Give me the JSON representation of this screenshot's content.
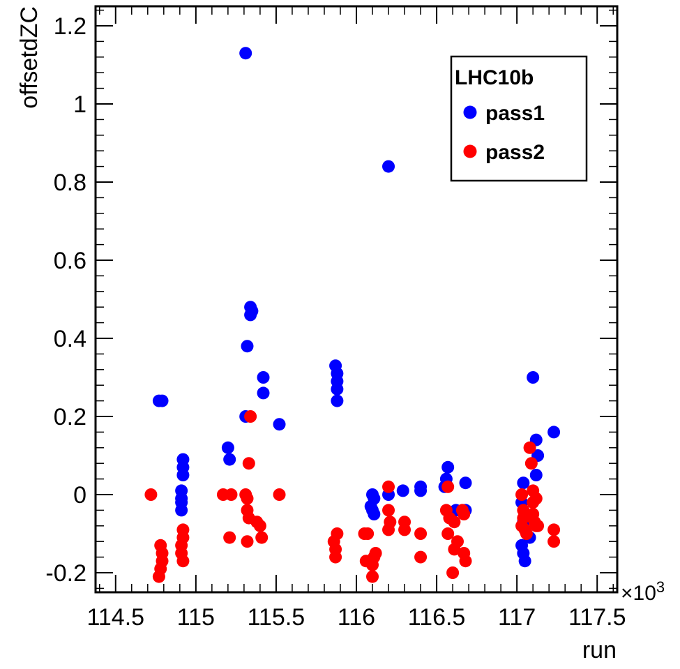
{
  "chart_data": {
    "type": "scatter",
    "title": "",
    "xlabel": "run",
    "ylabel": "offsetdZC",
    "x_multiplier_label": "×10",
    "x_multiplier_exp": "3",
    "xlim": [
      114.375,
      117.625
    ],
    "ylim": [
      -0.25,
      1.25
    ],
    "x_ticks": [
      "114.5",
      "115",
      "115.5",
      "116",
      "116.5",
      "117",
      "117.5"
    ],
    "x_tick_values": [
      114.5,
      115,
      115.5,
      116,
      116.5,
      117,
      117.5
    ],
    "y_ticks": [
      "-0.2",
      "0",
      "0.2",
      "0.4",
      "0.6",
      "0.8",
      "1",
      "1.2"
    ],
    "y_tick_values": [
      -0.2,
      0,
      0.2,
      0.4,
      0.6,
      0.8,
      1.0,
      1.2
    ],
    "grid": false,
    "legend": {
      "title": "LHC10b",
      "placement": "top-right"
    },
    "series": [
      {
        "name": "pass1",
        "color": "#0000ff",
        "points": [
          [
            114.77,
            0.24
          ],
          [
            114.79,
            0.24
          ],
          [
            114.92,
            0.09
          ],
          [
            114.92,
            0.07
          ],
          [
            114.92,
            0.05
          ],
          [
            114.91,
            0.01
          ],
          [
            114.91,
            -0.01
          ],
          [
            114.91,
            -0.02
          ],
          [
            114.91,
            -0.04
          ],
          [
            115.2,
            0.12
          ],
          [
            115.21,
            0.09
          ],
          [
            115.31,
            1.13
          ],
          [
            115.32,
            0.38
          ],
          [
            115.31,
            0.2
          ],
          [
            115.34,
            0.48
          ],
          [
            115.35,
            0.47
          ],
          [
            115.34,
            0.46
          ],
          [
            115.42,
            0.3
          ],
          [
            115.42,
            0.26
          ],
          [
            115.52,
            0.18
          ],
          [
            115.87,
            0.33
          ],
          [
            115.88,
            0.31
          ],
          [
            115.88,
            0.29
          ],
          [
            115.88,
            0.27
          ],
          [
            115.88,
            0.24
          ],
          [
            116.1,
            0.0
          ],
          [
            116.11,
            -0.01
          ],
          [
            116.09,
            -0.03
          ],
          [
            116.1,
            -0.04
          ],
          [
            116.11,
            -0.05
          ],
          [
            116.2,
            0.84
          ],
          [
            116.2,
            0.0
          ],
          [
            116.29,
            0.01
          ],
          [
            116.4,
            0.02
          ],
          [
            116.4,
            0.01
          ],
          [
            116.57,
            0.07
          ],
          [
            116.56,
            0.04
          ],
          [
            116.55,
            0.02
          ],
          [
            116.62,
            -0.04
          ],
          [
            116.68,
            0.03
          ],
          [
            116.68,
            -0.04
          ],
          [
            117.04,
            0.03
          ],
          [
            117.03,
            -0.02
          ],
          [
            117.04,
            -0.07
          ],
          [
            117.03,
            -0.13
          ],
          [
            117.04,
            -0.15
          ],
          [
            117.05,
            -0.17
          ],
          [
            117.08,
            -0.11
          ],
          [
            117.1,
            0.3
          ],
          [
            117.12,
            0.14
          ],
          [
            117.13,
            0.1
          ],
          [
            117.12,
            0.05
          ],
          [
            117.23,
            0.16
          ]
        ]
      },
      {
        "name": "pass2",
        "color": "#ff0000",
        "points": [
          [
            114.72,
            0.0
          ],
          [
            114.78,
            -0.13
          ],
          [
            114.79,
            -0.15
          ],
          [
            114.79,
            -0.17
          ],
          [
            114.78,
            -0.19
          ],
          [
            114.77,
            -0.21
          ],
          [
            114.92,
            -0.09
          ],
          [
            114.92,
            -0.11
          ],
          [
            114.91,
            -0.13
          ],
          [
            114.91,
            -0.15
          ],
          [
            114.92,
            -0.17
          ],
          [
            115.17,
            0.0
          ],
          [
            115.22,
            0.0
          ],
          [
            115.21,
            -0.11
          ],
          [
            115.31,
            0.0
          ],
          [
            115.32,
            -0.01
          ],
          [
            115.32,
            -0.04
          ],
          [
            115.33,
            -0.06
          ],
          [
            115.32,
            -0.12
          ],
          [
            115.33,
            0.08
          ],
          [
            115.34,
            0.2
          ],
          [
            115.38,
            -0.07
          ],
          [
            115.4,
            -0.08
          ],
          [
            115.41,
            -0.11
          ],
          [
            115.52,
            0.0
          ],
          [
            115.86,
            -0.12
          ],
          [
            115.87,
            -0.14
          ],
          [
            115.88,
            -0.1
          ],
          [
            115.87,
            -0.16
          ],
          [
            116.05,
            -0.1
          ],
          [
            116.07,
            -0.1
          ],
          [
            116.06,
            -0.17
          ],
          [
            116.1,
            -0.18
          ],
          [
            116.1,
            -0.21
          ],
          [
            116.11,
            -0.16
          ],
          [
            116.12,
            -0.15
          ],
          [
            116.2,
            0.02
          ],
          [
            116.2,
            -0.04
          ],
          [
            116.21,
            -0.07
          ],
          [
            116.2,
            -0.09
          ],
          [
            116.3,
            -0.07
          ],
          [
            116.3,
            -0.09
          ],
          [
            116.4,
            -0.1
          ],
          [
            116.4,
            -0.16
          ],
          [
            116.56,
            -0.04
          ],
          [
            116.57,
            0.02
          ],
          [
            116.58,
            -0.06
          ],
          [
            116.57,
            -0.1
          ],
          [
            116.61,
            -0.07
          ],
          [
            116.61,
            -0.14
          ],
          [
            116.6,
            -0.2
          ],
          [
            116.63,
            -0.12
          ],
          [
            116.66,
            -0.04
          ],
          [
            116.67,
            -0.05
          ],
          [
            116.67,
            -0.15
          ],
          [
            116.68,
            -0.17
          ],
          [
            117.03,
            0.0
          ],
          [
            117.04,
            -0.04
          ],
          [
            117.04,
            -0.06
          ],
          [
            117.03,
            -0.08
          ],
          [
            117.05,
            -0.09
          ],
          [
            117.06,
            -0.1
          ],
          [
            117.08,
            0.12
          ],
          [
            117.09,
            0.08
          ],
          [
            117.1,
            0.01
          ],
          [
            117.1,
            -0.02
          ],
          [
            117.1,
            -0.05
          ],
          [
            117.11,
            -0.07
          ],
          [
            117.12,
            -0.08
          ],
          [
            117.12,
            -0.01
          ],
          [
            117.13,
            -0.08
          ],
          [
            117.23,
            -0.09
          ],
          [
            117.23,
            -0.12
          ]
        ]
      }
    ]
  }
}
